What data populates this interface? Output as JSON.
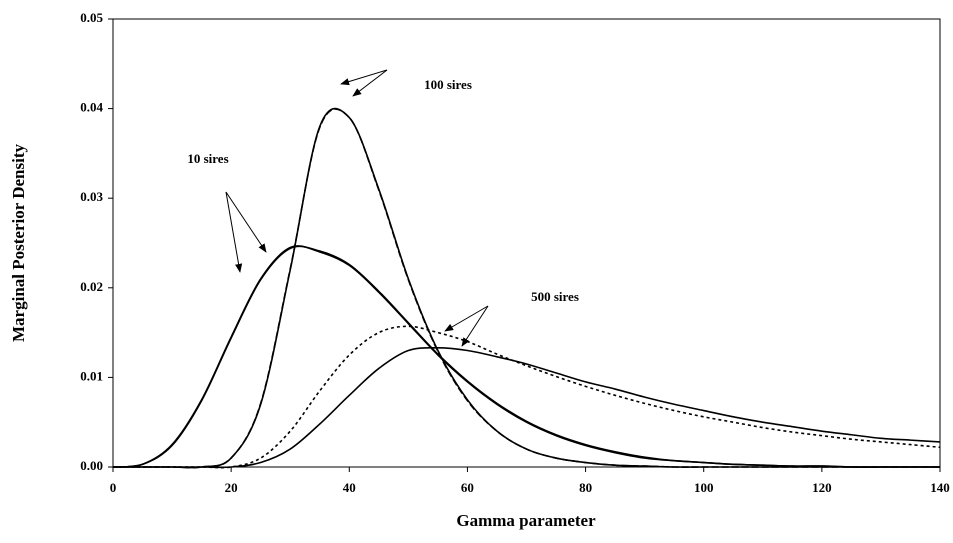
{
  "chart_data": {
    "type": "line",
    "xlabel": "Gamma parameter",
    "ylabel": "Marginal Posterior Density",
    "x": [
      0,
      5,
      10,
      15,
      20,
      25,
      30,
      35,
      40,
      45,
      50,
      55,
      60,
      65,
      70,
      75,
      80,
      85,
      90,
      95,
      100,
      105,
      110,
      115,
      120,
      125,
      130,
      135,
      140
    ],
    "series": [
      {
        "color": "#000000",
        "style": "solid",
        "values": [
          0,
          0.0003,
          0.0025,
          0.0075,
          0.0145,
          0.021,
          0.0245,
          0.024,
          0.0225,
          0.0195,
          0.016,
          0.0125,
          0.0095,
          0.007,
          0.005,
          0.0035,
          0.0024,
          0.0016,
          0.001,
          0.0007,
          0.0005,
          0.0003,
          0.0002,
          0.0001,
          0.0001,
          0,
          0,
          0,
          0
        ]
      },
      {
        "color": "#000000",
        "style": "solid",
        "values": [
          0,
          0.0003,
          0.0024,
          0.0074,
          0.0144,
          0.0209,
          0.0244,
          0.0241,
          0.0226,
          0.0196,
          0.0161,
          0.0126,
          0.0096,
          0.0071,
          0.0051,
          0.0036,
          0.0025,
          0.0017,
          0.0011,
          0.0007,
          0.0005,
          0.0003,
          0.0002,
          0.0001,
          0.0001,
          0,
          0,
          0,
          0
        ]
      },
      {
        "color": "#000000",
        "style": "solid",
        "values": [
          0,
          0,
          0,
          0,
          0.001,
          0.007,
          0.022,
          0.038,
          0.039,
          0.031,
          0.021,
          0.013,
          0.0075,
          0.004,
          0.002,
          0.001,
          0.0005,
          0.0002,
          0.0001,
          0,
          0,
          0,
          0,
          0,
          0,
          0,
          0,
          0,
          0
        ]
      },
      {
        "color": "#000000",
        "style": "dashed",
        "values": [
          0,
          0,
          0,
          0,
          0.001,
          0.0071,
          0.0221,
          0.0379,
          0.039,
          0.0309,
          0.0209,
          0.0129,
          0.0074,
          0.004,
          0.002,
          0.001,
          0.0005,
          0.0002,
          0.0001,
          0,
          0,
          0,
          0,
          0,
          0,
          0,
          0,
          0,
          0
        ]
      },
      {
        "color": "#000000",
        "style": "solid",
        "values": [
          0,
          0,
          0,
          0,
          0,
          0.0005,
          0.002,
          0.0048,
          0.008,
          0.011,
          0.013,
          0.0133,
          0.013,
          0.0123,
          0.0115,
          0.0105,
          0.0095,
          0.0087,
          0.0078,
          0.007,
          0.0063,
          0.0056,
          0.005,
          0.0045,
          0.004,
          0.0036,
          0.0032,
          0.003,
          0.0028
        ]
      },
      {
        "color": "#000000",
        "style": "dotted",
        "values": [
          0,
          0,
          0,
          0,
          0,
          0.001,
          0.004,
          0.0085,
          0.0125,
          0.015,
          0.0157,
          0.015,
          0.014,
          0.0126,
          0.0113,
          0.0101,
          0.009,
          0.008,
          0.0071,
          0.0063,
          0.0056,
          0.005,
          0.0044,
          0.0039,
          0.0035,
          0.0031,
          0.0028,
          0.0025,
          0.0022
        ]
      }
    ],
    "annotations": [
      "100 sires",
      "10 sires",
      "500 sires"
    ],
    "xlim": [
      0,
      140
    ],
    "xticks": [
      0,
      20,
      40,
      60,
      80,
      100,
      120,
      140
    ],
    "ylim": [
      0,
      0.05
    ],
    "yticks": [
      {
        "value": 0,
        "label": "0.00"
      },
      {
        "value": 0.01,
        "label": "0.01"
      },
      {
        "value": 0.02,
        "label": "0.02"
      },
      {
        "value": 0.03,
        "label": "0.03"
      },
      {
        "value": 0.04,
        "label": "0.04"
      },
      {
        "value": 0.05,
        "label": "0.05"
      }
    ],
    "grid": false
  }
}
